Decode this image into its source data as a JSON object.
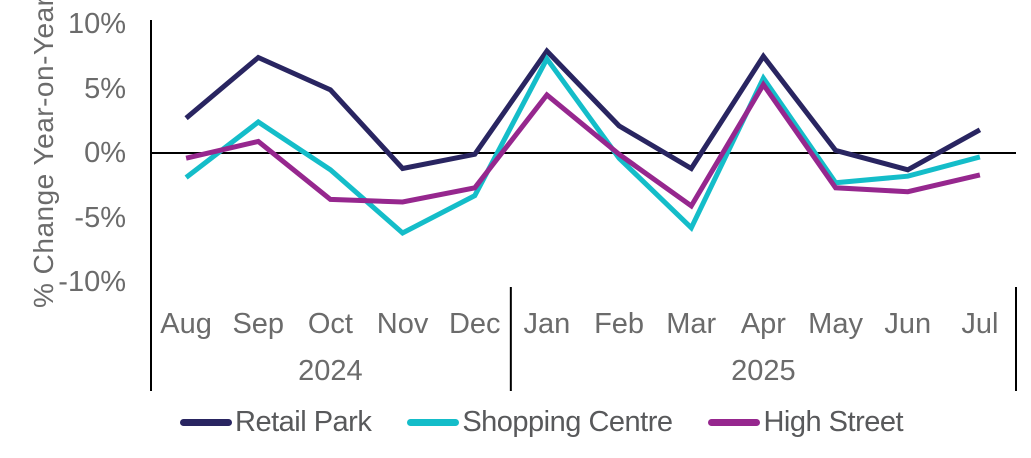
{
  "chart_data": {
    "type": "line",
    "title": "",
    "xlabel": "",
    "ylabel": "% Change Year-on-Year",
    "ylim": [
      -10,
      10
    ],
    "grid": false,
    "legend_position": "bottom",
    "yticks": [
      {
        "label": "10%",
        "value": 10
      },
      {
        "label": "5%",
        "value": 5
      },
      {
        "label": "0%",
        "value": 0
      },
      {
        "label": "-5%",
        "value": -5
      },
      {
        "label": "-10%",
        "value": -10
      }
    ],
    "categories": [
      "Aug",
      "Sep",
      "Oct",
      "Nov",
      "Dec",
      "Jan",
      "Feb",
      "Mar",
      "Apr",
      "May",
      "Jun",
      "Jul"
    ],
    "year_groups": [
      {
        "label": "2024",
        "start": 0,
        "count": 5
      },
      {
        "label": "2025",
        "start": 5,
        "count": 7
      }
    ],
    "series": [
      {
        "name": "Retail Park",
        "color": "#292561",
        "values": [
          2.7,
          7.4,
          4.9,
          -1.2,
          -0.1,
          7.9,
          2.1,
          -1.2,
          7.5,
          0.2,
          -1.3,
          1.8
        ]
      },
      {
        "name": "Shopping Centre",
        "color": "#14bdc9",
        "values": [
          -1.9,
          2.4,
          -1.3,
          -6.2,
          -3.3,
          7.3,
          -0.4,
          -5.8,
          5.8,
          -2.3,
          -1.8,
          -0.3
        ]
      },
      {
        "name": "High Street",
        "color": "#96278e",
        "values": [
          -0.4,
          0.9,
          -3.6,
          -3.8,
          -2.7,
          4.5,
          -0.1,
          -4.1,
          5.3,
          -2.7,
          -3.0,
          -1.7
        ]
      }
    ]
  },
  "colors": {
    "axis_line": "#000000",
    "label_text": "#6b6b6b"
  }
}
